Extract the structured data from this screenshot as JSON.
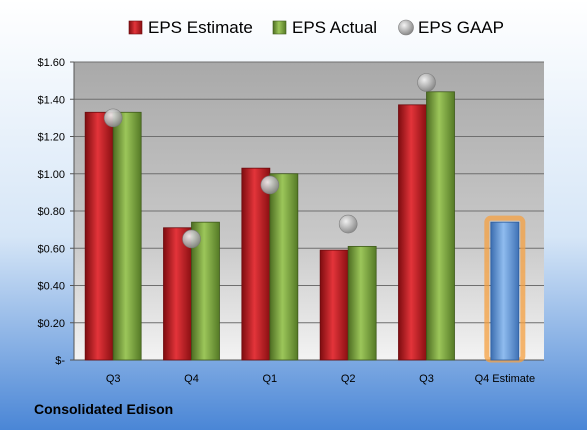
{
  "company": "Consolidated Edison",
  "colors": {
    "estimate": "#c8161d",
    "actual": "#77a33a",
    "gaap": "#b9b9b9",
    "forecast": "#5f97d8",
    "forecast_glow": "#f5a040"
  },
  "chart_data": {
    "type": "bar",
    "categories": [
      "Q3",
      "Q4",
      "Q1",
      "Q2",
      "Q3",
      "Q4 Estimate"
    ],
    "series": [
      {
        "name": "EPS Estimate",
        "type": "bar",
        "values": [
          1.33,
          0.71,
          1.03,
          0.59,
          1.37,
          null
        ]
      },
      {
        "name": "EPS Actual",
        "type": "bar",
        "values": [
          1.33,
          0.74,
          1.0,
          0.61,
          1.44,
          0.74
        ]
      },
      {
        "name": "EPS GAAP",
        "type": "scatter",
        "values": [
          1.3,
          0.65,
          0.94,
          0.73,
          1.49,
          null
        ]
      }
    ],
    "forecast_category": "Q4 Estimate",
    "ylim": [
      0,
      1.6
    ],
    "yticks": [
      0,
      0.2,
      0.4,
      0.6,
      0.8,
      1.0,
      1.2,
      1.4,
      1.6
    ],
    "ytick_labels": [
      "$-",
      "$0.20",
      "$0.40",
      "$0.60",
      "$0.80",
      "$1.00",
      "$1.20",
      "$1.40",
      "$1.60"
    ],
    "legend": [
      "EPS Estimate",
      "EPS Actual",
      "EPS GAAP"
    ],
    "legend_position": "top",
    "grid": true
  }
}
